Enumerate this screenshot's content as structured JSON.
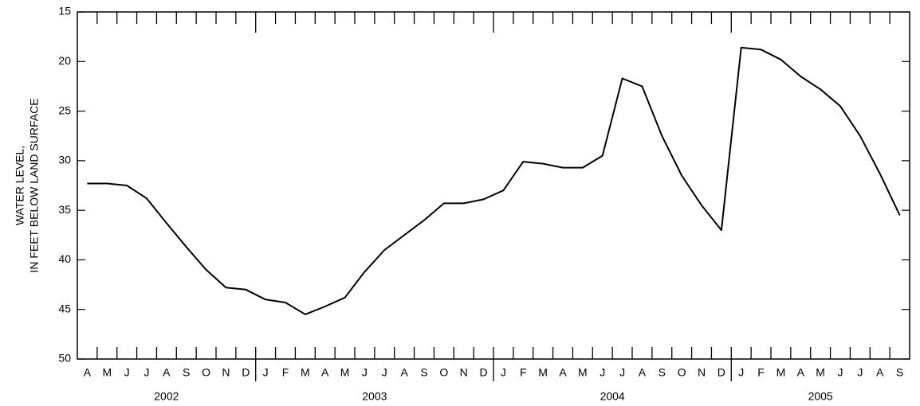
{
  "chart_data": {
    "type": "line",
    "ylabel": [
      "WATER LEVEL,",
      "IN FEET BELOW LAND SURFACE"
    ],
    "categories": [
      "A",
      "M",
      "J",
      "J",
      "A",
      "S",
      "O",
      "N",
      "D",
      "J",
      "F",
      "M",
      "A",
      "M",
      "J",
      "J",
      "A",
      "S",
      "O",
      "N",
      "D",
      "J",
      "F",
      "M",
      "A",
      "M",
      "J",
      "J",
      "A",
      "S",
      "O",
      "N",
      "D",
      "J",
      "F",
      "M",
      "A",
      "M",
      "J",
      "J",
      "A",
      "S"
    ],
    "years": [
      "2002",
      "2003",
      "2004",
      "2005"
    ],
    "series": [
      {
        "color": "#000000",
        "values": [
          32.3,
          32.3,
          32.5,
          33.8,
          36.3,
          38.7,
          41.0,
          42.8,
          43.0,
          44.0,
          44.3,
          45.5,
          44.7,
          43.8,
          41.2,
          39.0,
          37.5,
          36.0,
          34.3,
          34.3,
          33.9,
          33.0,
          30.1,
          30.3,
          30.7,
          30.7,
          29.5,
          21.7,
          22.5,
          27.5,
          31.5,
          34.5,
          37.0,
          18.6,
          18.8,
          19.8,
          21.5,
          22.8,
          24.5,
          27.5,
          31.3,
          35.5
        ]
      }
    ],
    "ylim": [
      50,
      15
    ],
    "yticks": [
      15,
      20,
      25,
      30,
      35,
      40,
      45,
      50
    ]
  }
}
